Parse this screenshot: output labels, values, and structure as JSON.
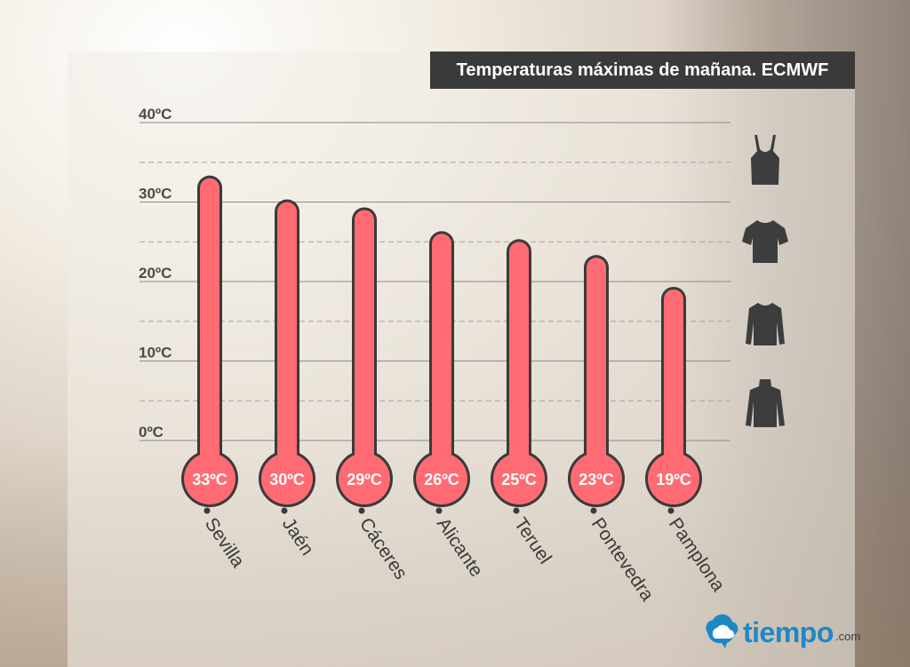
{
  "chart_data": {
    "type": "bar",
    "title": "Temperaturas máximas de mañana. ECMWF",
    "categories": [
      "Sevilla",
      "Jaén",
      "Cáceres",
      "Alicante",
      "Teruel",
      "Pontevedra",
      "Pamplona"
    ],
    "values": [
      33,
      30,
      29,
      26,
      25,
      23,
      19
    ],
    "value_labels": [
      "33ºC",
      "30ºC",
      "29ºC",
      "26ºC",
      "25ºC",
      "23ºC",
      "19ºC"
    ],
    "y_ticks": [
      {
        "value": 0,
        "label": "0ºC"
      },
      {
        "value": 10,
        "label": "10ºC"
      },
      {
        "value": 20,
        "label": "20ºC"
      },
      {
        "value": 30,
        "label": "30ºC"
      },
      {
        "value": 40,
        "label": "40ºC"
      }
    ],
    "ylim": [
      0,
      40
    ],
    "grid": true,
    "bar_color": "#ff6b72",
    "outline_color": "#3a3a3a",
    "clothing_icons": [
      "tank-top-icon",
      "t-shirt-icon",
      "long-sleeve-icon",
      "turtleneck-icon"
    ]
  },
  "brand": {
    "name": "tiempo",
    "suffix": ".com",
    "color": "#1e88c7"
  }
}
